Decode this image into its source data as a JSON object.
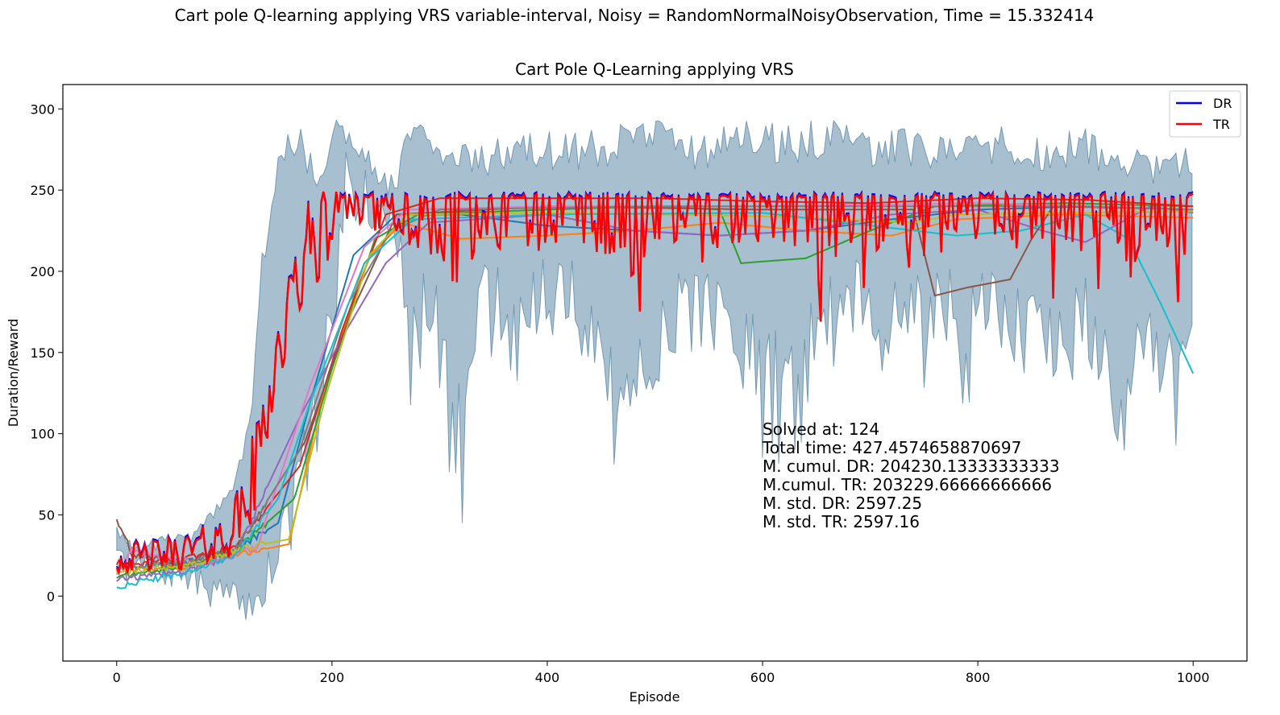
{
  "suptitle": "Cart pole Q-learning applying VRS variable-interval, Noisy = RandomNormalNoisyObservation, Time = 15.332414",
  "chart_data": {
    "type": "line",
    "title": "Cart Pole Q-Learning applying VRS",
    "xlabel": "Episode",
    "ylabel": "Duration/Reward",
    "xlim": [
      -50,
      1050
    ],
    "ylim": [
      -40,
      315
    ],
    "xticks": [
      0,
      200,
      400,
      600,
      800,
      1000
    ],
    "yticks": [
      0,
      50,
      100,
      150,
      200,
      250,
      300
    ],
    "grid": false,
    "legend_position": "top-right",
    "legend": [
      {
        "label": "DR",
        "color": "#0000ff"
      },
      {
        "label": "TR",
        "color": "#ff0000"
      }
    ],
    "band": {
      "color": "#4f7f9e",
      "upper": [
        [
          0,
          45
        ],
        [
          10,
          35
        ],
        [
          30,
          35
        ],
        [
          50,
          40
        ],
        [
          70,
          42
        ],
        [
          90,
          55
        ],
        [
          110,
          75
        ],
        [
          125,
          115
        ],
        [
          135,
          220
        ],
        [
          145,
          255
        ],
        [
          155,
          290
        ],
        [
          170,
          290
        ],
        [
          185,
          275
        ],
        [
          200,
          295
        ],
        [
          215,
          290
        ],
        [
          235,
          285
        ],
        [
          255,
          260
        ],
        [
          275,
          295
        ],
        [
          300,
          290
        ],
        [
          340,
          280
        ],
        [
          380,
          290
        ],
        [
          420,
          285
        ],
        [
          460,
          290
        ],
        [
          500,
          295
        ],
        [
          540,
          285
        ],
        [
          580,
          295
        ],
        [
          620,
          290
        ],
        [
          660,
          295
        ],
        [
          700,
          285
        ],
        [
          740,
          290
        ],
        [
          780,
          285
        ],
        [
          820,
          290
        ],
        [
          860,
          285
        ],
        [
          900,
          290
        ],
        [
          930,
          280
        ],
        [
          960,
          275
        ],
        [
          1000,
          280
        ]
      ],
      "lower": [
        [
          0,
          8
        ],
        [
          20,
          8
        ],
        [
          40,
          5
        ],
        [
          60,
          3
        ],
        [
          80,
          -5
        ],
        [
          100,
          -10
        ],
        [
          115,
          -15
        ],
        [
          135,
          -18
        ],
        [
          150,
          0
        ],
        [
          165,
          30
        ],
        [
          180,
          60
        ],
        [
          200,
          150
        ],
        [
          215,
          230
        ],
        [
          230,
          225
        ],
        [
          250,
          215
        ],
        [
          270,
          150
        ],
        [
          290,
          165
        ],
        [
          320,
          75
        ],
        [
          340,
          160
        ],
        [
          380,
          150
        ],
        [
          420,
          165
        ],
        [
          470,
          85
        ],
        [
          520,
          150
        ],
        [
          560,
          145
        ],
        [
          590,
          120
        ],
        [
          620,
          110
        ],
        [
          660,
          150
        ],
        [
          700,
          155
        ],
        [
          740,
          160
        ],
        [
          780,
          145
        ],
        [
          820,
          150
        ],
        [
          860,
          130
        ],
        [
          900,
          150
        ],
        [
          930,
          95
        ],
        [
          960,
          130
        ],
        [
          980,
          120
        ],
        [
          1000,
          150
        ]
      ]
    },
    "series": [
      {
        "color": "#1f77b4",
        "points": [
          [
            0,
            18
          ],
          [
            60,
            20
          ],
          [
            110,
            28
          ],
          [
            150,
            45
          ],
          [
            180,
            120
          ],
          [
            220,
            210
          ],
          [
            260,
            235
          ],
          [
            320,
            235
          ],
          [
            400,
            228
          ],
          [
            480,
            225
          ],
          [
            560,
            222
          ],
          [
            640,
            225
          ],
          [
            720,
            232
          ],
          [
            800,
            238
          ],
          [
            900,
            240
          ],
          [
            1000,
            238
          ]
        ]
      },
      {
        "color": "#ff7f0e",
        "points": [
          [
            0,
            16
          ],
          [
            60,
            18
          ],
          [
            110,
            25
          ],
          [
            160,
            32
          ],
          [
            190,
            120
          ],
          [
            230,
            205
          ],
          [
            265,
            230
          ],
          [
            320,
            220
          ],
          [
            400,
            222
          ],
          [
            480,
            225
          ],
          [
            560,
            230
          ],
          [
            640,
            225
          ],
          [
            720,
            222
          ],
          [
            780,
            232
          ],
          [
            880,
            235
          ],
          [
            1000,
            233
          ]
        ]
      },
      {
        "color": "#2ca02c",
        "points": [
          [
            0,
            12
          ],
          [
            60,
            18
          ],
          [
            110,
            28
          ],
          [
            165,
            60
          ],
          [
            200,
            140
          ],
          [
            240,
            220
          ],
          [
            280,
            235
          ],
          [
            400,
            238
          ],
          [
            500,
            240
          ],
          [
            560,
            238
          ],
          [
            580,
            205
          ],
          [
            640,
            208
          ],
          [
            700,
            225
          ],
          [
            760,
            240
          ],
          [
            880,
            242
          ],
          [
            1000,
            240
          ]
        ]
      },
      {
        "color": "#d62728",
        "points": [
          [
            0,
            20
          ],
          [
            60,
            22
          ],
          [
            110,
            30
          ],
          [
            170,
            80
          ],
          [
            210,
            165
          ],
          [
            250,
            235
          ],
          [
            300,
            245
          ],
          [
            400,
            245
          ],
          [
            500,
            245
          ],
          [
            600,
            243
          ],
          [
            700,
            242
          ],
          [
            800,
            245
          ],
          [
            900,
            244
          ],
          [
            1000,
            240
          ]
        ]
      },
      {
        "color": "#9467bd",
        "points": [
          [
            0,
            10
          ],
          [
            60,
            15
          ],
          [
            110,
            25
          ],
          [
            170,
            110
          ],
          [
            210,
            160
          ],
          [
            250,
            205
          ],
          [
            290,
            230
          ],
          [
            400,
            235
          ],
          [
            480,
            225
          ],
          [
            560,
            222
          ],
          [
            640,
            225
          ],
          [
            720,
            235
          ],
          [
            800,
            238
          ],
          [
            860,
            225
          ],
          [
            900,
            218
          ],
          [
            960,
            240
          ],
          [
            1000,
            236
          ]
        ]
      },
      {
        "color": "#8c564b",
        "points": [
          [
            0,
            48
          ],
          [
            5,
            40
          ],
          [
            15,
            25
          ],
          [
            60,
            22
          ],
          [
            110,
            28
          ],
          [
            175,
            95
          ],
          [
            215,
            170
          ],
          [
            260,
            235
          ],
          [
            400,
            240
          ],
          [
            600,
            238
          ],
          [
            740,
            238
          ],
          [
            760,
            185
          ],
          [
            790,
            190
          ],
          [
            830,
            195
          ],
          [
            850,
            220
          ],
          [
            870,
            240
          ],
          [
            1000,
            238
          ]
        ]
      },
      {
        "color": "#e377c2",
        "points": [
          [
            0,
            14
          ],
          [
            15,
            30
          ],
          [
            30,
            25
          ],
          [
            80,
            20
          ],
          [
            130,
            30
          ],
          [
            180,
            130
          ],
          [
            230,
            215
          ],
          [
            270,
            238
          ],
          [
            400,
            240
          ],
          [
            600,
            240
          ],
          [
            800,
            242
          ],
          [
            1000,
            238
          ]
        ]
      },
      {
        "color": "#7f7f7f",
        "points": [
          [
            0,
            17
          ],
          [
            60,
            20
          ],
          [
            110,
            28
          ],
          [
            170,
            90
          ],
          [
            215,
            180
          ],
          [
            255,
            225
          ],
          [
            300,
            238
          ],
          [
            500,
            240
          ],
          [
            700,
            240
          ],
          [
            900,
            240
          ],
          [
            1000,
            238
          ]
        ]
      },
      {
        "color": "#bcbd22",
        "points": [
          [
            0,
            15
          ],
          [
            60,
            18
          ],
          [
            120,
            30
          ],
          [
            160,
            35
          ],
          [
            195,
            125
          ],
          [
            235,
            210
          ],
          [
            270,
            235
          ],
          [
            400,
            236
          ],
          [
            600,
            234
          ],
          [
            740,
            230
          ],
          [
            780,
            235
          ],
          [
            1000,
            237
          ]
        ]
      },
      {
        "color": "#17becf",
        "points": [
          [
            0,
            6
          ],
          [
            60,
            14
          ],
          [
            110,
            25
          ],
          [
            150,
            60
          ],
          [
            180,
            120
          ],
          [
            230,
            205
          ],
          [
            275,
            232
          ],
          [
            400,
            235
          ],
          [
            600,
            236
          ],
          [
            780,
            222
          ],
          [
            840,
            225
          ],
          [
            900,
            235
          ],
          [
            940,
            220
          ],
          [
            970,
            180
          ],
          [
            1000,
            137
          ]
        ]
      }
    ],
    "dr_tr_profile": [
      [
        0,
        20
      ],
      [
        20,
        22
      ],
      [
        40,
        23
      ],
      [
        60,
        25
      ],
      [
        80,
        28
      ],
      [
        100,
        33
      ],
      [
        115,
        45
      ],
      [
        125,
        60
      ],
      [
        135,
        100
      ],
      [
        145,
        140
      ],
      [
        155,
        160
      ],
      [
        165,
        185
      ],
      [
        175,
        210
      ],
      [
        185,
        220
      ],
      [
        195,
        225
      ],
      [
        205,
        240
      ],
      [
        215,
        245
      ],
      [
        225,
        248
      ],
      [
        240,
        245
      ],
      [
        260,
        238
      ],
      [
        280,
        232
      ],
      [
        300,
        230
      ],
      [
        320,
        195
      ],
      [
        340,
        240
      ],
      [
        360,
        235
      ],
      [
        380,
        238
      ],
      [
        400,
        232
      ],
      [
        420,
        236
      ],
      [
        440,
        232
      ],
      [
        460,
        230
      ],
      [
        480,
        218
      ],
      [
        500,
        240
      ],
      [
        520,
        236
      ],
      [
        540,
        242
      ],
      [
        560,
        235
      ],
      [
        580,
        232
      ],
      [
        600,
        240
      ],
      [
        620,
        235
      ],
      [
        640,
        238
      ],
      [
        660,
        225
      ],
      [
        680,
        238
      ],
      [
        700,
        230
      ],
      [
        720,
        240
      ],
      [
        740,
        235
      ],
      [
        760,
        225
      ],
      [
        780,
        242
      ],
      [
        800,
        235
      ],
      [
        820,
        240
      ],
      [
        840,
        235
      ],
      [
        860,
        238
      ],
      [
        880,
        240
      ],
      [
        900,
        232
      ],
      [
        920,
        245
      ],
      [
        940,
        215
      ],
      [
        960,
        235
      ],
      [
        980,
        230
      ],
      [
        1000,
        230
      ]
    ],
    "annotations": [
      "Solved at: 124",
      "Total time: 427.4574658870697",
      "M. cumul. DR: 204230.13333333333",
      "M.cumul. TR: 203229.66666666666",
      "M. std. DR: 2597.25",
      "M. std. TR: 2597.16"
    ]
  }
}
